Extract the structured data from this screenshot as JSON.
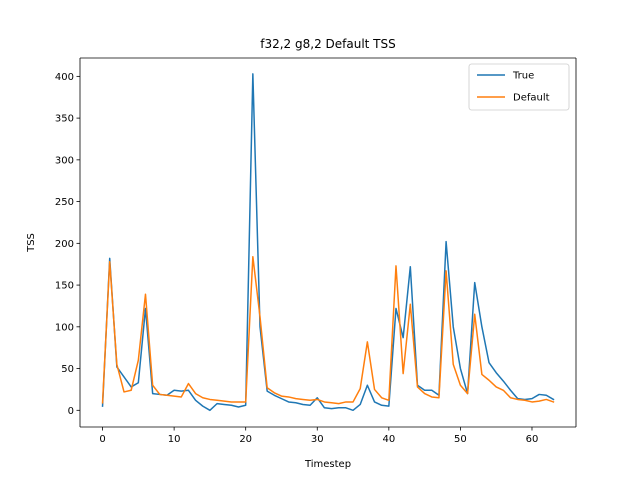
{
  "chart_data": {
    "type": "line",
    "title": "f32,2 g8,2 Default TSS",
    "xlabel": "Timestep",
    "ylabel": "TSS",
    "xlim": [
      -3.15,
      66.15
    ],
    "ylim": [
      -20,
      422
    ],
    "xticks": [
      0,
      10,
      20,
      30,
      40,
      50,
      60
    ],
    "yticks": [
      0,
      50,
      100,
      150,
      200,
      250,
      300,
      350,
      400
    ],
    "grid": false,
    "legend_position": "top-right",
    "x": [
      0,
      1,
      2,
      3,
      4,
      5,
      6,
      7,
      8,
      9,
      10,
      11,
      12,
      13,
      14,
      15,
      16,
      17,
      18,
      19,
      20,
      21,
      22,
      23,
      24,
      25,
      26,
      27,
      28,
      29,
      30,
      31,
      32,
      33,
      34,
      35,
      36,
      37,
      38,
      39,
      40,
      41,
      42,
      43,
      44,
      45,
      46,
      47,
      48,
      49,
      50,
      51,
      52,
      53,
      54,
      55,
      56,
      57,
      58,
      59,
      60,
      61,
      62,
      63
    ],
    "series": [
      {
        "name": "True",
        "color": "#1f77b4",
        "values": [
          5,
          182,
          52,
          40,
          28,
          33,
          122,
          20,
          19,
          18,
          24,
          23,
          24,
          12,
          5,
          0,
          8,
          7,
          6,
          4,
          6,
          403,
          100,
          23,
          18,
          14,
          10,
          9,
          7,
          6,
          15,
          3,
          2,
          3,
          3,
          0,
          7,
          30,
          10,
          6,
          5,
          122,
          87,
          172,
          30,
          24,
          24,
          18,
          202,
          100,
          50,
          20,
          153,
          100,
          57,
          45,
          35,
          24,
          14,
          13,
          14,
          19,
          18,
          13
        ],
        "line_width": 1.5
      },
      {
        "name": "Default",
        "color": "#ff7f0e",
        "values": [
          9,
          178,
          55,
          22,
          24,
          60,
          139,
          30,
          19,
          18,
          17,
          16,
          32,
          20,
          15,
          13,
          12,
          11,
          10,
          10,
          10,
          184,
          112,
          27,
          21,
          17,
          16,
          14,
          13,
          12,
          13,
          10,
          9,
          8,
          10,
          10,
          26,
          82,
          25,
          15,
          12,
          173,
          44,
          127,
          28,
          20,
          16,
          15,
          167,
          55,
          30,
          20,
          115,
          43,
          36,
          28,
          24,
          15,
          13,
          12,
          10,
          11,
          13,
          10
        ],
        "line_width": 1.5
      }
    ]
  }
}
